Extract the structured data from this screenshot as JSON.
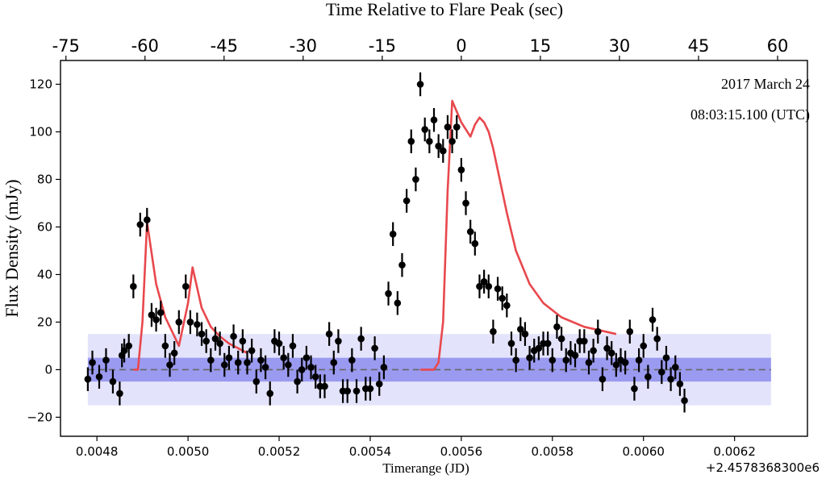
{
  "chart_data": {
    "type": "scatter",
    "title": "Time Relative to Flare Peak (sec)",
    "xlabel": "Timerange (JD)",
    "ylabel": "Flux Density (mJy)",
    "x_offset_label": "+2.4578368300e6",
    "annotation": [
      "2017 March 24",
      "08:03:15.100 (UTC)"
    ],
    "xlim": [
      0.00472,
      0.00636
    ],
    "ylim": [
      -28,
      130
    ],
    "x_ticks": [
      0.0048,
      0.005,
      0.0052,
      0.0054,
      0.0056,
      0.0058,
      0.006,
      0.0062
    ],
    "x_tick_labels": [
      "0.0048",
      "0.0050",
      "0.0052",
      "0.0054",
      "0.0056",
      "0.0058",
      "0.0060",
      "0.0062"
    ],
    "y_ticks": [
      -20,
      0,
      20,
      40,
      60,
      80,
      100,
      120
    ],
    "y_tick_labels": [
      "−20",
      "0",
      "20",
      "40",
      "60",
      "80",
      "100",
      "120"
    ],
    "top_axis": {
      "label": "Time Relative to Flare Peak (sec)",
      "ticks_sec": [
        -75,
        -60,
        -45,
        -30,
        -15,
        0,
        15,
        30,
        45,
        60
      ],
      "tick_labels": [
        "-75",
        "-60",
        "-45",
        "-30",
        "-15",
        "0",
        "15",
        "30",
        "45",
        "60"
      ],
      "peak_jd": 0.0056,
      "jd_per_sec": 1.1574e-05
    },
    "bands": [
      {
        "name": "outer-band",
        "ymin": -15,
        "ymax": 15,
        "xmin": 0.00478,
        "xmax": 0.00628,
        "color": "#e3e3fb"
      },
      {
        "name": "inner-band",
        "ymin": -5,
        "ymax": 5,
        "xmin": 0.00478,
        "xmax": 0.00628,
        "color": "#9a9af0"
      }
    ],
    "zero_line": {
      "y": 0,
      "style": "dashed",
      "color": "#666666"
    },
    "model_color": "#e8484d",
    "point_color": "#000000",
    "model_segments": [
      {
        "name": "flare-1-model",
        "x": [
          0.00488,
          0.00489,
          0.0049,
          0.00491,
          0.00493,
          0.00495,
          0.00497,
          0.00498,
          0.005,
          0.00501,
          0.00503,
          0.00505,
          0.00507,
          0.00509,
          0.00511,
          0.00513
        ],
        "y": [
          0,
          0,
          20,
          62,
          36,
          22,
          14,
          10,
          28,
          43,
          26,
          18,
          14,
          11,
          9,
          7
        ]
      },
      {
        "name": "flare-2-model",
        "x": [
          0.00551,
          0.00554,
          0.00555,
          0.00556,
          0.00557,
          0.00558,
          0.0056,
          0.00562,
          0.00563,
          0.00564,
          0.00565,
          0.00566,
          0.00567,
          0.0057,
          0.00572,
          0.00575,
          0.00578,
          0.00582,
          0.00587,
          0.00594
        ],
        "y": [
          0,
          0,
          3,
          20,
          75,
          113,
          104,
          98,
          103,
          106,
          104,
          100,
          93,
          66,
          50,
          36,
          28,
          22,
          18,
          15
        ]
      }
    ],
    "series": [
      {
        "name": "flux",
        "points": [
          [
            0.00478,
            -4,
            5
          ],
          [
            0.00479,
            3,
            5
          ],
          [
            0.004805,
            -3,
            5
          ],
          [
            0.00482,
            4,
            5
          ],
          [
            0.004835,
            -5,
            5
          ],
          [
            0.00485,
            -10,
            5
          ],
          [
            0.004855,
            6,
            5
          ],
          [
            0.00486,
            8,
            5
          ],
          [
            0.00487,
            10,
            5
          ],
          [
            0.00488,
            35,
            5
          ],
          [
            0.004895,
            61,
            5
          ],
          [
            0.00491,
            63,
            5
          ],
          [
            0.00492,
            23,
            5
          ],
          [
            0.00493,
            21,
            5
          ],
          [
            0.00494,
            24,
            5
          ],
          [
            0.00495,
            10,
            5
          ],
          [
            0.00496,
            2,
            5
          ],
          [
            0.00497,
            7,
            5
          ],
          [
            0.00498,
            20,
            5
          ],
          [
            0.004995,
            35,
            5
          ],
          [
            0.005005,
            20,
            5
          ],
          [
            0.00502,
            19,
            5
          ],
          [
            0.00503,
            15,
            5
          ],
          [
            0.00504,
            12,
            5
          ],
          [
            0.00505,
            4,
            5
          ],
          [
            0.00506,
            13,
            5
          ],
          [
            0.00507,
            11,
            5
          ],
          [
            0.00508,
            2,
            5
          ],
          [
            0.00509,
            5,
            5
          ],
          [
            0.0051,
            14,
            5
          ],
          [
            0.00511,
            3,
            5
          ],
          [
            0.00512,
            12,
            5
          ],
          [
            0.00513,
            3,
            5
          ],
          [
            0.00514,
            8,
            5
          ],
          [
            0.00515,
            -5,
            5
          ],
          [
            0.00516,
            4,
            5
          ],
          [
            0.00517,
            1,
            5
          ],
          [
            0.00518,
            -10,
            5
          ],
          [
            0.00519,
            12,
            5
          ],
          [
            0.0052,
            11,
            5
          ],
          [
            0.00521,
            5,
            5
          ],
          [
            0.00522,
            2,
            5
          ],
          [
            0.00523,
            10,
            5
          ],
          [
            0.00524,
            -5,
            5
          ],
          [
            0.00525,
            0,
            5
          ],
          [
            0.00526,
            5,
            5
          ],
          [
            0.00527,
            1,
            5
          ],
          [
            0.00528,
            -3,
            5
          ],
          [
            0.00529,
            -7,
            5
          ],
          [
            0.0053,
            -7,
            5
          ],
          [
            0.00531,
            15,
            5
          ],
          [
            0.00532,
            3,
            5
          ],
          [
            0.00533,
            12,
            5
          ],
          [
            0.00534,
            -9,
            5
          ],
          [
            0.00535,
            -9,
            5
          ],
          [
            0.00536,
            4,
            5
          ],
          [
            0.00537,
            -9,
            5
          ],
          [
            0.00538,
            13,
            5
          ],
          [
            0.00539,
            -8,
            5
          ],
          [
            0.0054,
            -8,
            5
          ],
          [
            0.00541,
            9,
            5
          ],
          [
            0.00542,
            -6,
            5
          ],
          [
            0.00543,
            1,
            5
          ],
          [
            0.00544,
            32,
            5
          ],
          [
            0.00545,
            57,
            5
          ],
          [
            0.00546,
            28,
            5
          ],
          [
            0.00547,
            44,
            5
          ],
          [
            0.00548,
            71,
            5
          ],
          [
            0.00549,
            96,
            5
          ],
          [
            0.0055,
            80,
            5
          ],
          [
            0.00551,
            120,
            5
          ],
          [
            0.00552,
            101,
            5
          ],
          [
            0.00553,
            96,
            5
          ],
          [
            0.00554,
            105,
            5
          ],
          [
            0.00555,
            94,
            5
          ],
          [
            0.00556,
            92,
            5
          ],
          [
            0.00557,
            102,
            5
          ],
          [
            0.00558,
            96,
            5
          ],
          [
            0.00559,
            102,
            5
          ],
          [
            0.0056,
            84,
            5
          ],
          [
            0.00561,
            70,
            5
          ],
          [
            0.00562,
            58,
            5
          ],
          [
            0.00563,
            53,
            5
          ],
          [
            0.00564,
            35,
            5
          ],
          [
            0.00565,
            37,
            5
          ],
          [
            0.00566,
            35,
            5
          ],
          [
            0.00567,
            16,
            5
          ],
          [
            0.00568,
            34,
            5
          ],
          [
            0.00569,
            30,
            5
          ],
          [
            0.0057,
            27,
            5
          ],
          [
            0.00571,
            11,
            5
          ],
          [
            0.00572,
            4,
            5
          ],
          [
            0.00573,
            17,
            5
          ],
          [
            0.00574,
            15,
            5
          ],
          [
            0.00575,
            5,
            5
          ],
          [
            0.00576,
            8,
            5
          ],
          [
            0.00577,
            9,
            5
          ],
          [
            0.00578,
            11,
            5
          ],
          [
            0.00579,
            11,
            5
          ],
          [
            0.0058,
            4,
            5
          ],
          [
            0.00581,
            18,
            5
          ],
          [
            0.00582,
            13,
            5
          ],
          [
            0.00583,
            4,
            5
          ],
          [
            0.00584,
            7,
            5
          ],
          [
            0.00585,
            6,
            5
          ],
          [
            0.00586,
            12,
            5
          ],
          [
            0.00587,
            12,
            5
          ],
          [
            0.00588,
            3,
            5
          ],
          [
            0.00589,
            8,
            5
          ],
          [
            0.0059,
            16,
            5
          ],
          [
            0.00591,
            -4,
            5
          ],
          [
            0.00592,
            9,
            5
          ],
          [
            0.00593,
            7,
            5
          ],
          [
            0.00594,
            2,
            5
          ],
          [
            0.00595,
            4,
            5
          ],
          [
            0.00596,
            3,
            5
          ],
          [
            0.00597,
            16,
            5
          ],
          [
            0.00598,
            -8,
            5
          ],
          [
            0.00599,
            4,
            5
          ],
          [
            0.006,
            10,
            5
          ],
          [
            0.00601,
            -3,
            5
          ],
          [
            0.00602,
            21,
            5
          ],
          [
            0.00603,
            13,
            5
          ],
          [
            0.00604,
            -1,
            5
          ],
          [
            0.00605,
            5,
            5
          ],
          [
            0.00606,
            -4,
            5
          ],
          [
            0.00607,
            1,
            5
          ],
          [
            0.00608,
            -6,
            5
          ],
          [
            0.00609,
            -13,
            5
          ]
        ]
      }
    ]
  }
}
